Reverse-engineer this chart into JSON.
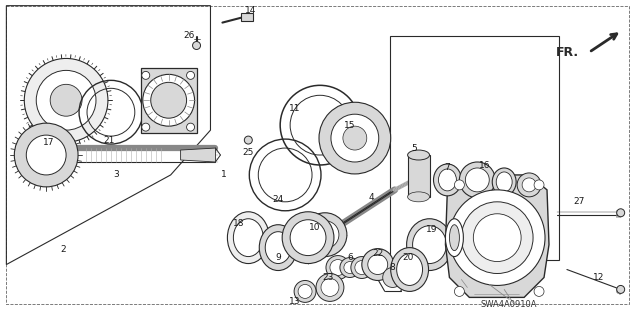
{
  "background_color": "#ffffff",
  "figure_width": 6.4,
  "figure_height": 3.19,
  "dpi": 100,
  "diagram_label": "SWA4A0910A",
  "line_color": "#2a2a2a",
  "text_color": "#1a1a1a",
  "gray_fill": "#d8d8d8",
  "mid_gray": "#b0b0b0",
  "dark_gray": "#888888",
  "light_gray": "#eeeeee"
}
